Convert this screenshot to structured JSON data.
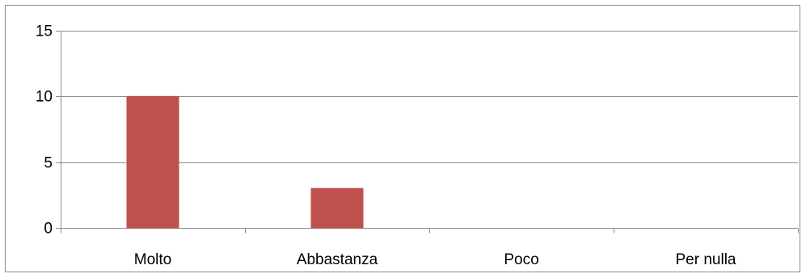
{
  "chart_data": {
    "type": "bar",
    "categories": [
      "Molto",
      "Abbastanza",
      "Poco",
      "Per nulla"
    ],
    "values": [
      10,
      3,
      0,
      0
    ],
    "ylim": [
      0,
      15
    ],
    "yticks": [
      0,
      5,
      10,
      15
    ],
    "grid": true,
    "bar_color": "#c0504d",
    "bar_border_color": "#b9504b",
    "gridline_color": "#8c8c8c",
    "title": "",
    "xlabel": "",
    "ylabel": ""
  }
}
